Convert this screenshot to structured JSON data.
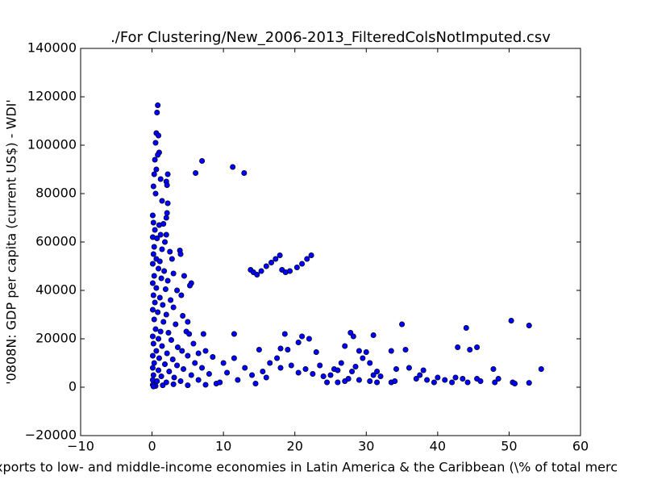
{
  "chart_data": {
    "type": "scatter",
    "title": "./For Clustering/New_2006-2013_FilteredColsNotImputed.csv",
    "x_label": "xports to low- and middle-income economies in Latin America & the Caribbean  (\\% of total merc",
    "y_label": "'0808N: GDP per capita  (current US$) - WDI'",
    "color": "#0000ff",
    "xlim": [
      -10,
      60
    ],
    "ylim": [
      -20000,
      140000
    ],
    "xticks": [
      {
        "value": -10,
        "label": "−10"
      },
      0,
      10,
      20,
      30,
      40,
      50,
      60
    ],
    "yticks": [
      {
        "value": -20000,
        "label": "−20000"
      },
      0,
      20000,
      40000,
      60000,
      80000,
      100000,
      120000,
      140000
    ],
    "x": [
      0.8,
      0.7,
      0.6,
      0.9,
      0.5,
      1.0,
      0.8,
      0.4,
      0.6,
      0.3,
      1.2,
      0.2,
      0.5,
      1.4,
      2.2,
      2.0,
      2.1,
      2.2,
      2.1,
      2.0,
      0.1,
      0.2,
      1.0,
      1.6,
      0.4,
      1.2,
      2.0,
      0.1,
      0.7,
      1.8,
      0.3,
      1.4,
      2.5,
      0.2,
      3.9,
      4.0,
      0.6,
      1.1,
      2.8,
      0.1,
      0.9,
      1.7,
      3.0,
      4.5,
      0.3,
      1.3,
      2.2,
      5.5,
      5.3,
      0.1,
      0.6,
      1.9,
      3.5,
      0.2,
      1.1,
      2.6,
      4.1,
      0.4,
      1.5,
      3.0,
      0.1,
      0.8,
      2.0,
      4.3,
      5.0,
      0.3,
      1.6,
      3.3,
      0.5,
      1.2,
      2.3,
      4.8,
      5.2,
      7.2,
      0.1,
      0.9,
      2.7,
      0.2,
      1.4,
      3.6,
      5.8,
      0.6,
      2.1,
      4.2,
      6.5,
      7.5,
      0.1,
      1.0,
      2.9,
      5.0,
      8.5,
      0.3,
      1.8,
      3.5,
      6.0,
      0.1,
      0.9,
      2.4,
      4.4,
      7.0,
      0.2,
      1.3,
      3.1,
      5.5,
      8.0,
      0.1,
      0.7,
      2.0,
      4.0,
      6.5,
      0.1,
      0.5,
      1.5,
      3.0,
      5.0,
      7.5,
      9.0,
      0.2,
      6.1,
      7.0,
      11.3,
      12.9,
      13.8,
      14.2,
      14.7,
      15.3,
      16.0,
      16.7,
      17.3,
      17.9,
      18.2,
      18.7,
      19.3,
      20.3,
      21.0,
      21.7,
      22.3,
      11.5,
      18.6,
      21.0,
      22.0,
      18.0,
      19.0,
      15.0,
      20.5,
      23.0,
      10.0,
      11.5,
      13.0,
      14.0,
      15.5,
      16.5,
      17.5,
      19.5,
      20.5,
      22.5,
      24.0,
      12.0,
      9.5,
      10.5,
      14.5,
      16.0,
      18.0,
      21.5,
      23.5,
      24.5,
      25.5,
      26.5,
      27.0,
      27.8,
      28.2,
      29.0,
      29.5,
      30.0,
      30.5,
      31.0,
      31.0,
      31.5,
      26.0,
      27.5,
      28.5,
      29.0,
      30.5,
      31.5,
      33.5,
      33.5,
      34.2,
      35.0,
      35.5,
      36.0,
      37.0,
      37.5,
      38.0,
      38.5,
      39.5,
      40.0,
      41.0,
      42.0,
      42.5,
      42.8,
      43.5,
      44.0,
      44.5,
      44.2,
      45.5,
      45.5,
      46.0,
      47.8,
      48.0,
      48.5,
      50.3,
      50.5,
      50.8,
      52.8,
      52.8,
      54.5,
      25.0,
      26.0,
      27.0,
      28.0,
      32.0,
      34.0
    ],
    "values": [
      116500,
      113500,
      105000,
      104000,
      101000,
      97000,
      96000,
      94000,
      90000,
      88000,
      86000,
      83000,
      80000,
      77000,
      88000,
      85000,
      83500,
      76000,
      72000,
      70000,
      71000,
      68000,
      67000,
      67500,
      65000,
      63000,
      63000,
      62000,
      61500,
      60000,
      58000,
      57000,
      56000,
      55000,
      56500,
      55000,
      53000,
      52000,
      53000,
      51000,
      49000,
      48000,
      47000,
      46000,
      46000,
      45000,
      44000,
      43000,
      42000,
      43000,
      41000,
      40500,
      40000,
      38000,
      37000,
      36000,
      38000,
      35000,
      34000,
      33000,
      32000,
      31000,
      30000,
      29500,
      27000,
      28000,
      27000,
      26000,
      24000,
      23000,
      22500,
      23000,
      22000,
      22000,
      21000,
      20000,
      19500,
      18000,
      17000,
      16500,
      18000,
      15000,
      14000,
      15000,
      14000,
      15000,
      13000,
      12000,
      11500,
      13000,
      12500,
      10000,
      9500,
      9000,
      10000,
      8000,
      7000,
      6500,
      7500,
      8000,
      5000,
      4500,
      4000,
      5000,
      5500,
      3000,
      2500,
      2000,
      2500,
      3000,
      1000,
      500,
      800,
      1200,
      800,
      1000,
      1500,
      300,
      88500,
      93500,
      91000,
      88500,
      48500,
      47500,
      46500,
      48000,
      50000,
      51500,
      53000,
      54500,
      48500,
      47500,
      48000,
      49500,
      51000,
      53000,
      54500,
      22000,
      22000,
      21000,
      20000,
      16000,
      15500,
      15500,
      18500,
      14500,
      10000,
      12000,
      8000,
      5000,
      6500,
      10000,
      12000,
      9000,
      6000,
      5500,
      4500,
      3000,
      2000,
      6000,
      1500,
      4000,
      8000,
      7500,
      9000,
      2000,
      7500,
      10000,
      17000,
      22500,
      21000,
      15000,
      12000,
      14500,
      10000,
      21500,
      5000,
      6500,
      2000,
      3500,
      8500,
      3000,
      2500,
      2000,
      15000,
      2000,
      7500,
      26000,
      15500,
      8000,
      3500,
      5000,
      7000,
      3000,
      2000,
      4000,
      3000,
      2000,
      4000,
      16500,
      3500,
      24500,
      15500,
      2000,
      16500,
      3500,
      2500,
      7500,
      2000,
      3500,
      27500,
      2000,
      1500,
      25500,
      1800,
      7500,
      5000,
      7000,
      2500,
      6500,
      4500,
      2500
    ]
  }
}
